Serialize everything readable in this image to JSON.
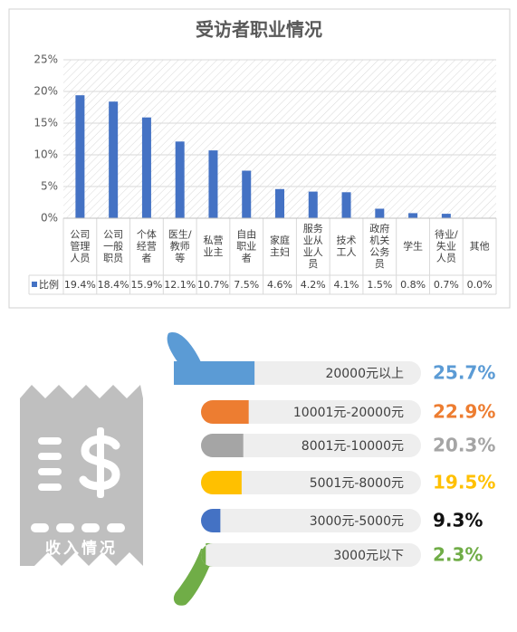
{
  "chart_data": [
    {
      "type": "bar",
      "title": "受访者职业情况",
      "categories": [
        "公司管理人员",
        "公司一般职员",
        "个体经营者",
        "医生/教师等",
        "私营业主",
        "自由职业者",
        "家庭主妇",
        "服务业从业人员",
        "技术工人",
        "政府机关公务员",
        "学生",
        "待业/失业人员",
        "其他"
      ],
      "series": [
        {
          "name": "比例",
          "color": "#4472c4",
          "values": [
            19.4,
            18.4,
            15.9,
            12.1,
            10.7,
            7.5,
            4.6,
            4.2,
            4.1,
            1.5,
            0.8,
            0.7,
            0.0
          ],
          "value_labels": [
            "19.4%",
            "18.4%",
            "15.9%",
            "12.1%",
            "10.7%",
            "7.5%",
            "4.6%",
            "4.2%",
            "4.1%",
            "1.5%",
            "0.8%",
            "0.7%",
            "0.0%"
          ]
        }
      ],
      "ylim": [
        0,
        25
      ],
      "yticks": [
        {
          "value": 0,
          "label": "0%"
        },
        {
          "value": 5,
          "label": "5%"
        },
        {
          "value": 10,
          "label": "10%"
        },
        {
          "value": 15,
          "label": "15%"
        },
        {
          "value": 20,
          "label": "20%"
        },
        {
          "value": 25,
          "label": "25%"
        }
      ],
      "grid": true
    },
    {
      "type": "progress",
      "title": "收入情况",
      "categories": [
        "20000元以上",
        "10001元-20000元",
        "8001元-10000元",
        "5001元-8000元",
        "3000元-5000元",
        "3000元以下"
      ],
      "values": [
        25.7,
        22.9,
        20.3,
        19.5,
        9.3,
        2.3
      ],
      "value_labels": [
        "25.7%",
        "22.9%",
        "20.3%",
        "19.5%",
        "9.3%",
        "2.3%"
      ],
      "colors": [
        "#5b9bd5",
        "#ed7d31",
        "#a5a5a5",
        "#ffc000",
        "#4472c4",
        "#70ad47"
      ],
      "label_colors": [
        "#5b9bd5",
        "#ed7d31",
        "#a5a5a5",
        "#ffc000",
        "#111111",
        "#70ad47"
      ]
    }
  ]
}
